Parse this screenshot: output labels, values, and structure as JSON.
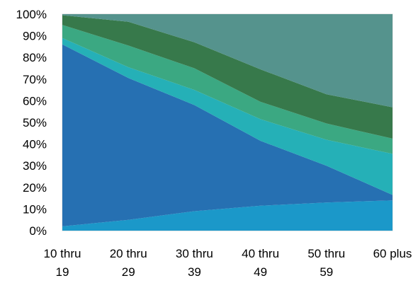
{
  "chart_data": {
    "type": "area",
    "stacked": "percent",
    "categories": [
      [
        "10 thru",
        "19"
      ],
      [
        "20 thru",
        "29"
      ],
      [
        "30 thru",
        "39"
      ],
      [
        "40 thru",
        "49"
      ],
      [
        "50 thru",
        "59"
      ],
      [
        "60 plus",
        ""
      ]
    ],
    "y_ticks": [
      "0%",
      "10%",
      "20%",
      "30%",
      "40%",
      "50%",
      "60%",
      "70%",
      "80%",
      "90%",
      "100%"
    ],
    "ylim": [
      0,
      100
    ],
    "grid": false,
    "legend": "none",
    "series": [
      {
        "color": "#1b98c9",
        "values": [
          2,
          5,
          9,
          11.5,
          13,
          14
        ]
      },
      {
        "color": "#2670b2",
        "values": [
          84,
          65.5,
          49,
          30,
          17,
          2.5
        ]
      },
      {
        "color": "#25b0b7",
        "values": [
          3,
          5,
          7,
          10,
          12,
          19
        ]
      },
      {
        "color": "#3ba882",
        "values": [
          6,
          10,
          10,
          8,
          7.5,
          7
        ]
      },
      {
        "color": "#37794b",
        "values": [
          4.5,
          11,
          12,
          15,
          13.5,
          14.5
        ]
      },
      {
        "color": "#55938d",
        "values": [
          0.5,
          3.5,
          13,
          25.5,
          37,
          43
        ]
      }
    ]
  }
}
